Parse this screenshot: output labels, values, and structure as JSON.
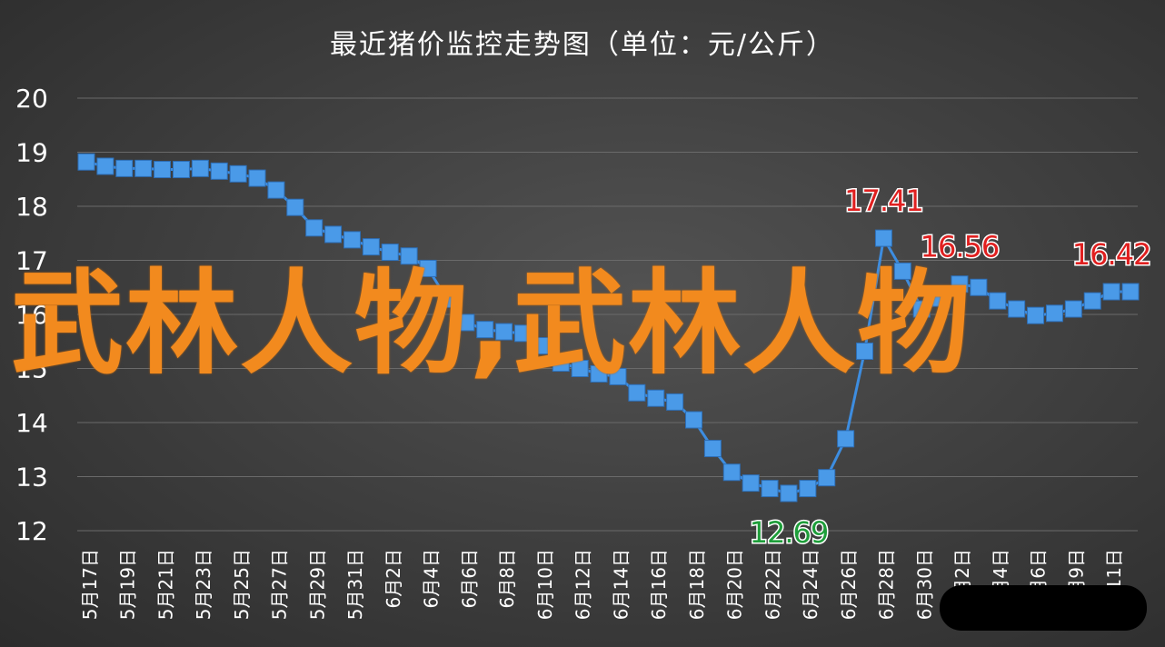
{
  "chart_data": {
    "type": "line",
    "title": "最近猪价监控走势图（单位：元/公斤）",
    "ylim": [
      12,
      20
    ],
    "yticks": [
      12,
      13,
      14,
      15,
      16,
      17,
      18,
      19,
      20
    ],
    "grid": true,
    "line_color": "#3d8de0",
    "marker_color": "#4a9ae8",
    "x_tick_labels": [
      "5月17日",
      "5月19日",
      "5月21日",
      "5月23日",
      "5月25日",
      "5月27日",
      "5月29日",
      "5月31日",
      "6月2日",
      "6月4日",
      "6月6日",
      "6月8日",
      "6月10日",
      "6月12日",
      "6月14日",
      "6月16日",
      "6月18日",
      "6月20日",
      "6月22日",
      "6月24日",
      "6月26日",
      "6月28日",
      "6月30日",
      "7月2日",
      "7月4日",
      "7月6日",
      "7月9日",
      "7月11日"
    ],
    "values": [
      18.82,
      18.74,
      18.7,
      18.7,
      18.68,
      18.68,
      18.7,
      18.65,
      18.6,
      18.52,
      18.3,
      17.98,
      17.6,
      17.48,
      17.38,
      17.25,
      17.15,
      17.08,
      16.85,
      16.28,
      15.85,
      15.72,
      15.68,
      15.65,
      15.42,
      15.1,
      15.0,
      14.9,
      14.85,
      14.55,
      14.45,
      14.38,
      14.05,
      13.52,
      13.08,
      12.88,
      12.78,
      12.69,
      12.78,
      12.98,
      13.7,
      15.32,
      17.41,
      16.8,
      16.1,
      16.3,
      16.56,
      16.5,
      16.25,
      16.1,
      15.98,
      16.02,
      16.1,
      16.25,
      16.42,
      16.42
    ],
    "annotations": [
      {
        "index": 37,
        "text": "12.69",
        "color": "#1e9e3a"
      },
      {
        "index": 42,
        "text": "17.41",
        "color": "#e02020"
      },
      {
        "index": 46,
        "text": "16.56",
        "color": "#e02020"
      },
      {
        "index": 54,
        "text": "16.42",
        "color": "#e02020"
      }
    ]
  },
  "overlay_text": "武林人物,武林人物"
}
